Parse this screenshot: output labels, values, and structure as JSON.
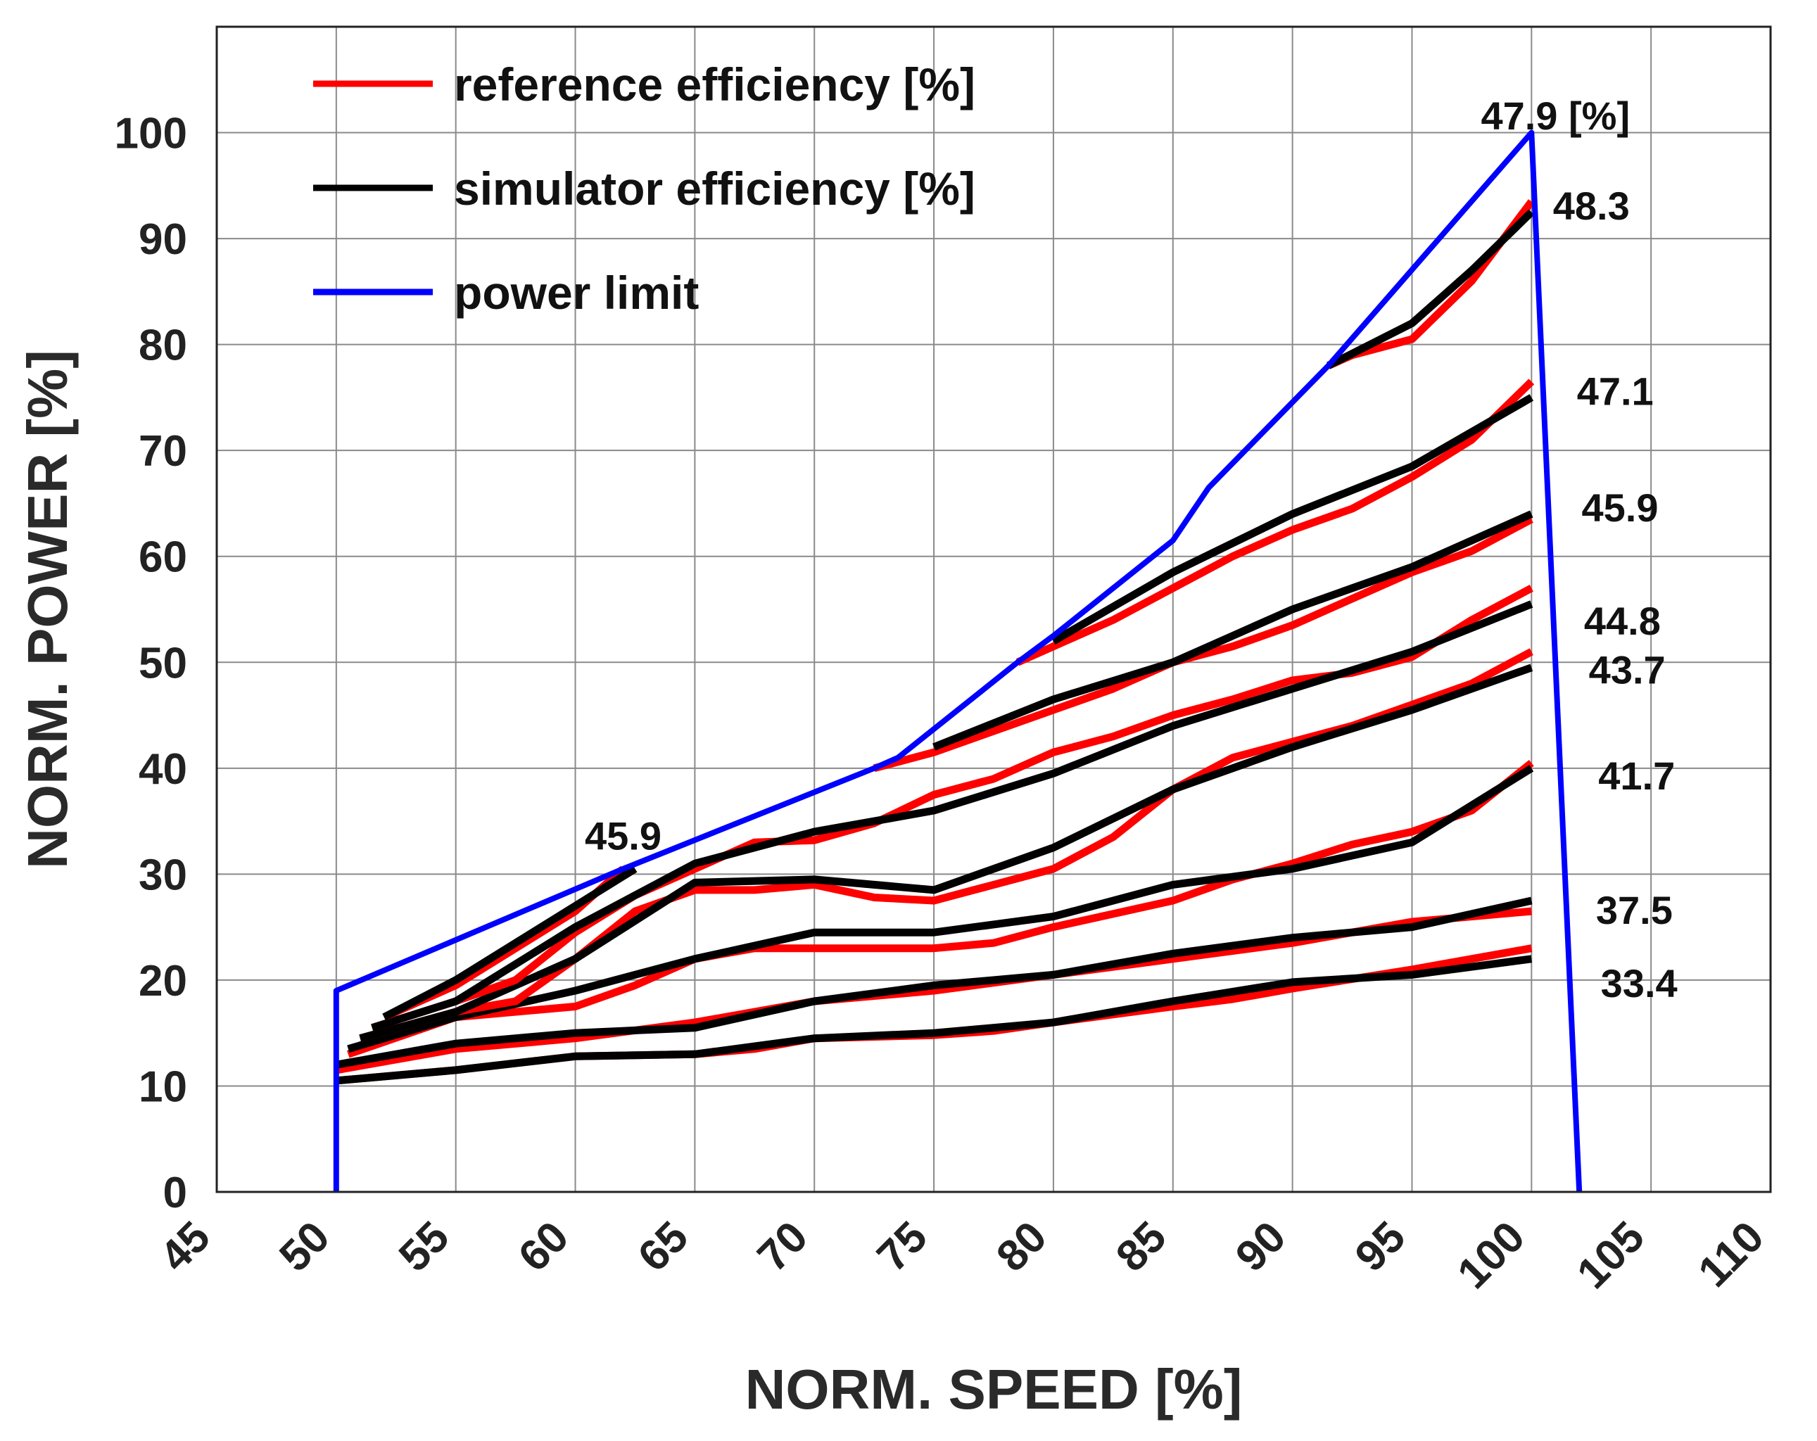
{
  "chart_data": {
    "type": "line",
    "xlabel": "NORM. SPEED [%]",
    "ylabel": "NORM. POWER [%]",
    "xlim": [
      45,
      110
    ],
    "ylim": [
      0,
      110
    ],
    "xticks": [
      45,
      50,
      55,
      60,
      65,
      70,
      75,
      80,
      85,
      90,
      95,
      100,
      105,
      110
    ],
    "yticks": [
      0,
      10,
      20,
      30,
      40,
      50,
      60,
      70,
      80,
      90,
      100
    ],
    "grid": true,
    "legend": {
      "position": "top-left",
      "entries": [
        {
          "label": "reference efficiency [%]",
          "color": "#ff0000"
        },
        {
          "label": "simulator efficiency [%]",
          "color": "#000000"
        },
        {
          "label": "power limit",
          "color": "#0000ff"
        }
      ]
    },
    "power_limit": {
      "name": "power limit",
      "color": "#0000ff",
      "points": [
        [
          50,
          0
        ],
        [
          50,
          19
        ],
        [
          62,
          30.5
        ],
        [
          72.5,
          40
        ],
        [
          73.5,
          41
        ],
        [
          78.5,
          50
        ],
        [
          80,
          52.5
        ],
        [
          85,
          61.5
        ],
        [
          86.5,
          66.5
        ],
        [
          91.5,
          78
        ],
        [
          100,
          100
        ],
        [
          102,
          0
        ]
      ]
    },
    "series": [
      {
        "efficiency": "33.4",
        "color": "#ff0000",
        "points": [
          [
            50,
            10.5
          ],
          [
            55,
            11.5
          ],
          [
            60,
            12.8
          ],
          [
            65,
            13
          ],
          [
            67.5,
            13.5
          ],
          [
            70,
            14.5
          ],
          [
            75,
            14.8
          ],
          [
            77.5,
            15.2
          ],
          [
            80,
            16
          ],
          [
            85,
            17.5
          ],
          [
            87.5,
            18.2
          ],
          [
            90,
            19.2
          ],
          [
            95,
            21
          ],
          [
            97.5,
            22
          ],
          [
            100,
            23
          ]
        ]
      },
      {
        "efficiency": "33.4",
        "color": "#000000",
        "points": [
          [
            50,
            10.5
          ],
          [
            55,
            11.5
          ],
          [
            60,
            12.8
          ],
          [
            65,
            13
          ],
          [
            70,
            14.5
          ],
          [
            75,
            15
          ],
          [
            80,
            16
          ],
          [
            85,
            18
          ],
          [
            90,
            19.8
          ],
          [
            95,
            20.5
          ],
          [
            100,
            22
          ]
        ]
      },
      {
        "efficiency": "37.5",
        "color": "#ff0000",
        "points": [
          [
            50,
            11.5
          ],
          [
            52.5,
            12.5
          ],
          [
            55,
            13.5
          ],
          [
            60,
            14.5
          ],
          [
            65,
            16
          ],
          [
            70,
            18
          ],
          [
            75,
            19
          ],
          [
            80,
            20.5
          ],
          [
            85,
            22
          ],
          [
            90,
            23.5
          ],
          [
            95,
            25.5
          ],
          [
            100,
            26.5
          ]
        ]
      },
      {
        "efficiency": "37.5",
        "color": "#000000",
        "points": [
          [
            50,
            12
          ],
          [
            55,
            14
          ],
          [
            60,
            15
          ],
          [
            65,
            15.5
          ],
          [
            70,
            18
          ],
          [
            75,
            19.5
          ],
          [
            80,
            20.5
          ],
          [
            85,
            22.5
          ],
          [
            90,
            24
          ],
          [
            95,
            25
          ],
          [
            100,
            27.5
          ]
        ]
      },
      {
        "efficiency": "41.7",
        "color": "#ff0000",
        "points": [
          [
            50.5,
            13
          ],
          [
            55,
            16.5
          ],
          [
            60,
            17.5
          ],
          [
            62.5,
            19.5
          ],
          [
            65,
            22
          ],
          [
            67.5,
            23
          ],
          [
            70,
            23
          ],
          [
            75,
            23
          ],
          [
            77.5,
            23.5
          ],
          [
            80,
            25
          ],
          [
            85,
            27.5
          ],
          [
            87.5,
            29.5
          ],
          [
            90,
            31
          ],
          [
            92.5,
            32.8
          ],
          [
            95,
            34
          ],
          [
            97.5,
            36
          ],
          [
            100,
            40.5
          ]
        ]
      },
      {
        "efficiency": "41.7",
        "color": "#000000",
        "points": [
          [
            50.5,
            13.5
          ],
          [
            55,
            16.5
          ],
          [
            60,
            19
          ],
          [
            65,
            22
          ],
          [
            70,
            24.5
          ],
          [
            75,
            24.5
          ],
          [
            80,
            26
          ],
          [
            85,
            29
          ],
          [
            90,
            30.5
          ],
          [
            95,
            33
          ],
          [
            100,
            40
          ]
        ]
      },
      {
        "efficiency": "43.7",
        "color": "#ff0000",
        "points": [
          [
            51,
            14.5
          ],
          [
            55,
            17
          ],
          [
            57.5,
            18
          ],
          [
            60,
            22
          ],
          [
            62.5,
            26.5
          ],
          [
            65,
            28.5
          ],
          [
            67.5,
            28.5
          ],
          [
            70,
            29
          ],
          [
            72.5,
            27.8
          ],
          [
            75,
            27.5
          ],
          [
            77.5,
            29
          ],
          [
            80,
            30.5
          ],
          [
            82.5,
            33.5
          ],
          [
            85,
            38
          ],
          [
            87.5,
            41
          ],
          [
            90,
            42.5
          ],
          [
            92.5,
            44
          ],
          [
            95,
            46
          ],
          [
            97.5,
            48
          ],
          [
            100,
            51
          ]
        ]
      },
      {
        "efficiency": "43.7",
        "color": "#000000",
        "points": [
          [
            51,
            14.5
          ],
          [
            55,
            17
          ],
          [
            60,
            22
          ],
          [
            65,
            29.2
          ],
          [
            70,
            29.5
          ],
          [
            75,
            28.5
          ],
          [
            80,
            32.5
          ],
          [
            85,
            38
          ],
          [
            90,
            42
          ],
          [
            95,
            45.5
          ],
          [
            100,
            49.5
          ]
        ]
      },
      {
        "efficiency": "44.8",
        "color": "#ff0000",
        "points": [
          [
            51.5,
            15.5
          ],
          [
            55,
            18
          ],
          [
            57.5,
            20
          ],
          [
            60,
            24.5
          ],
          [
            62.5,
            28
          ],
          [
            65,
            30.5
          ],
          [
            67.5,
            33
          ],
          [
            70,
            33.2
          ],
          [
            72.5,
            34.8
          ],
          [
            75,
            37.5
          ],
          [
            77.5,
            39
          ],
          [
            80,
            41.5
          ],
          [
            82.5,
            43
          ],
          [
            85,
            45
          ],
          [
            87.5,
            46.5
          ],
          [
            90,
            48.3
          ],
          [
            92.5,
            49
          ],
          [
            95,
            50.5
          ],
          [
            97.5,
            54
          ],
          [
            100,
            57
          ]
        ]
      },
      {
        "efficiency": "44.8",
        "color": "#000000",
        "points": [
          [
            51.5,
            15.5
          ],
          [
            55,
            18
          ],
          [
            60,
            25
          ],
          [
            65,
            31
          ],
          [
            70,
            34
          ],
          [
            72.5,
            35
          ],
          [
            75,
            36
          ],
          [
            80,
            39.5
          ],
          [
            85,
            44
          ],
          [
            90,
            47.5
          ],
          [
            95,
            51
          ],
          [
            100,
            55.5
          ]
        ]
      },
      {
        "efficiency": "45.9",
        "color": "#ff0000",
        "points": [
          [
            52,
            16.5
          ],
          [
            55,
            19.5
          ],
          [
            60,
            26.5
          ],
          [
            62,
            30.5
          ]
        ]
      },
      {
        "efficiency": "45.9",
        "color": "#000000",
        "points": [
          [
            52,
            16.5
          ],
          [
            55,
            20
          ],
          [
            60,
            27
          ],
          [
            62.5,
            30.5
          ]
        ]
      },
      {
        "efficiency": "45.9",
        "color": "#ff0000",
        "points": [
          [
            72.5,
            40
          ],
          [
            75,
            41.5
          ],
          [
            77.5,
            43.5
          ],
          [
            80,
            45.5
          ],
          [
            82.5,
            47.5
          ],
          [
            85,
            50
          ],
          [
            87.5,
            51.5
          ],
          [
            90,
            53.5
          ],
          [
            92.5,
            56
          ],
          [
            95,
            58.5
          ],
          [
            97.5,
            60.5
          ],
          [
            100,
            63.5
          ]
        ]
      },
      {
        "efficiency": "45.9",
        "color": "#000000",
        "points": [
          [
            75,
            42
          ],
          [
            80,
            46.5
          ],
          [
            85,
            50
          ],
          [
            87.5,
            52.5
          ],
          [
            90,
            55
          ],
          [
            95,
            59
          ],
          [
            100,
            64
          ]
        ]
      },
      {
        "efficiency": "47.1",
        "color": "#ff0000",
        "points": [
          [
            78.5,
            50
          ],
          [
            80,
            51.5
          ],
          [
            82.5,
            54
          ],
          [
            85,
            57
          ],
          [
            87.5,
            60
          ],
          [
            90,
            62.5
          ],
          [
            92.5,
            64.5
          ],
          [
            95,
            67.5
          ],
          [
            97.5,
            71
          ],
          [
            100,
            76.5
          ]
        ]
      },
      {
        "efficiency": "47.1",
        "color": "#000000",
        "points": [
          [
            80,
            52
          ],
          [
            85,
            58.5
          ],
          [
            90,
            64
          ],
          [
            95,
            68.5
          ],
          [
            100,
            75
          ]
        ]
      },
      {
        "efficiency": "48.3",
        "color": "#ff0000",
        "points": [
          [
            91.5,
            78
          ],
          [
            92.5,
            79
          ],
          [
            95,
            80.5
          ],
          [
            97.5,
            86
          ],
          [
            100,
            93.5
          ]
        ]
      },
      {
        "efficiency": "48.3",
        "color": "#000000",
        "points": [
          [
            91.5,
            78
          ],
          [
            95,
            82
          ],
          [
            97.5,
            87
          ],
          [
            100,
            92.5
          ]
        ]
      }
    ],
    "annotations": [
      {
        "text": "47.9 [%]",
        "x": 101,
        "y": 101.5
      },
      {
        "text": "48.3",
        "x": 102.5,
        "y": 93
      },
      {
        "text": "47.1",
        "x": 103.5,
        "y": 75.5
      },
      {
        "text": "45.9",
        "x": 103.7,
        "y": 64.5
      },
      {
        "text": "44.8",
        "x": 103.8,
        "y": 53.8
      },
      {
        "text": "43.7",
        "x": 104,
        "y": 49.2
      },
      {
        "text": "41.7",
        "x": 104.4,
        "y": 39.2
      },
      {
        "text": "37.5",
        "x": 104.3,
        "y": 26.5
      },
      {
        "text": "33.4",
        "x": 104.5,
        "y": 19.6
      },
      {
        "text": "45.9",
        "x": 62,
        "y": 33.5
      }
    ]
  }
}
